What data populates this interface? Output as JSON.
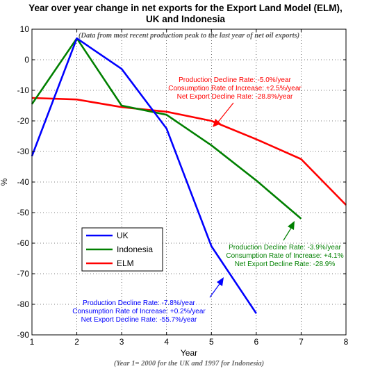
{
  "chart_data": {
    "type": "line",
    "title_line1": "Year over year change in net exports for the Export Land Model (ELM),",
    "title_line2": "UK and Indonesia",
    "subtitle": "(Data from most recent production peak to the last year of net oil exports)",
    "xlabel": "Year",
    "xlabel_note": "(Year 1= 2000 for the UK and 1997 for Indonesia)",
    "ylabel": "%",
    "xlim": [
      1,
      8
    ],
    "ylim": [
      -90,
      10
    ],
    "xticks": [
      1,
      2,
      3,
      4,
      5,
      6,
      7,
      8
    ],
    "yticks": [
      10,
      0,
      -10,
      -20,
      -30,
      -40,
      -50,
      -60,
      -70,
      -80,
      -90
    ],
    "grid": true,
    "series": [
      {
        "name": "UK",
        "color": "#0000ff",
        "x": [
          1,
          2,
          3,
          4,
          5,
          6
        ],
        "y": [
          -31.5,
          7,
          -3,
          -22.5,
          -61,
          -83
        ]
      },
      {
        "name": "Indonesia",
        "color": "#008000",
        "x": [
          1,
          2,
          3,
          4,
          5,
          6,
          7
        ],
        "y": [
          -14.5,
          7,
          -15,
          -18,
          -28,
          -39.5,
          -52
        ]
      },
      {
        "name": "ELM",
        "color": "#ff0000",
        "x": [
          1,
          2,
          3,
          4,
          5,
          6,
          7,
          8
        ],
        "y": [
          -12.5,
          -13,
          -15.5,
          -17,
          -20,
          -26,
          -32.5,
          -47.5
        ]
      }
    ],
    "legend_position": "lower-left",
    "annotations": [
      {
        "series": "ELM",
        "color": "#ff0000",
        "lines": [
          "Production Decline Rate: -5.0%/year",
          "Consumption Rate of Increase: +2.5%/year",
          "Net Export Decline Rate: -28.8%/year"
        ]
      },
      {
        "series": "Indonesia",
        "color": "#008000",
        "lines": [
          "Production Decline Rate: -3.9%/year",
          "Consumption Rate of Increase: +4.1%",
          "Net Export Decline Rate: -28.9%"
        ]
      },
      {
        "series": "UK",
        "color": "#0000ff",
        "lines": [
          "Production Decline Rate: -7.8%/year",
          "Consumption Rate of Increase: +0.2%/year",
          "Net Export Decline Rate: -55.7%/year"
        ]
      }
    ]
  }
}
